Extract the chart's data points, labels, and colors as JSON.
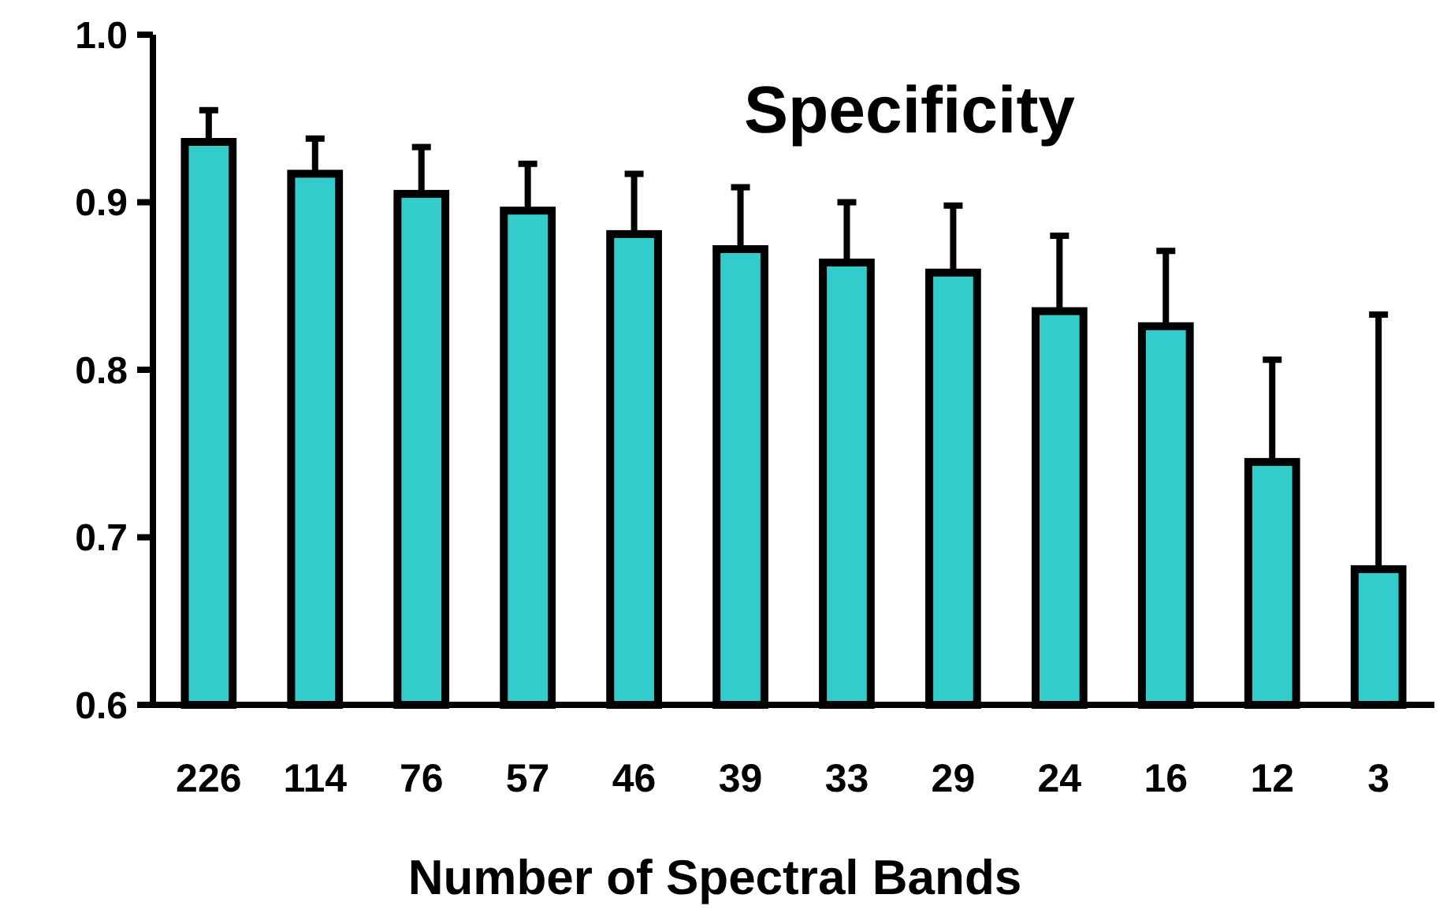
{
  "chart_data": {
    "type": "bar",
    "title": "Specificity",
    "xlabel": "Number of Spectral Bands",
    "categories": [
      "226",
      "114",
      "76",
      "57",
      "46",
      "39",
      "33",
      "29",
      "24",
      "16",
      "12",
      "3"
    ],
    "values": [
      0.936,
      0.917,
      0.905,
      0.895,
      0.881,
      0.872,
      0.864,
      0.858,
      0.835,
      0.826,
      0.745,
      0.681
    ],
    "errors": [
      [
        0.936,
        0.955
      ],
      [
        0.917,
        0.938
      ],
      [
        0.905,
        0.933
      ],
      [
        0.895,
        0.923
      ],
      [
        0.881,
        0.917
      ],
      [
        0.872,
        0.909
      ],
      [
        0.864,
        0.9
      ],
      [
        0.858,
        0.898
      ],
      [
        0.835,
        0.88
      ],
      [
        0.826,
        0.871
      ],
      [
        0.745,
        0.806
      ],
      [
        0.681,
        0.833
      ]
    ],
    "color": "#33cccc",
    "ylim": [
      0.6,
      1.0
    ],
    "yticks": [
      {
        "value": 0.6,
        "label": "0.6"
      },
      {
        "value": 0.7,
        "label": "0.7"
      },
      {
        "value": 0.8,
        "label": "0.8"
      },
      {
        "value": 0.9,
        "label": "0.9"
      },
      {
        "value": 1.0,
        "label": "1.0"
      }
    ],
    "grid": false
  }
}
